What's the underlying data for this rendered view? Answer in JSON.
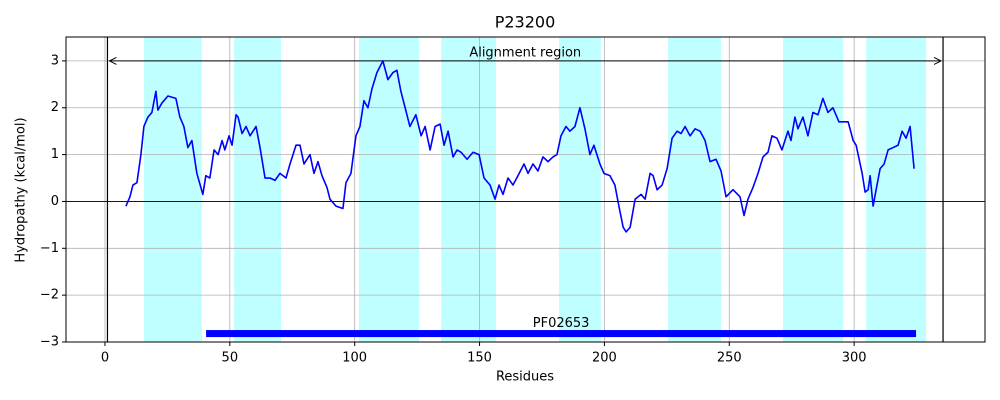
{
  "chart_data": {
    "type": "line",
    "title": "P23200",
    "xlabel": "Residues",
    "ylabel": "Hydropathy (kcal/mol)",
    "x": [
      8.4,
      10,
      11.2,
      12.8,
      14.4,
      15.6,
      17.2,
      18.8,
      20.4,
      21.2,
      22.8,
      25.2,
      28.4,
      30,
      31.6,
      33.2,
      34.8,
      36.8,
      39.2,
      40.4,
      42,
      43.7,
      45.3,
      46.9,
      48,
      49.7,
      50.9,
      52.5,
      53.3,
      54.9,
      56.5,
      58.1,
      60.5,
      62.1,
      64.1,
      66.1,
      68.1,
      70.1,
      72.5,
      74.1,
      76.5,
      78.1,
      79.7,
      82.1,
      83.7,
      85.3,
      86.9,
      88.9,
      90.1,
      92.5,
      95.3,
      96.5,
      98.5,
      100.5,
      102.1,
      103.7,
      105.3,
      106.9,
      108.9,
      111.3,
      113.3,
      115.3,
      116.9,
      118.5,
      120.2,
      122.1,
      124.5,
      126.6,
      128.2,
      130.2,
      132.2,
      134.2,
      135.8,
      137.4,
      139.4,
      141,
      142.6,
      145,
      147.4,
      149.8,
      151.8,
      154.2,
      156.2,
      157.8,
      159.4,
      161.4,
      163.4,
      165.4,
      167.8,
      169.4,
      171.4,
      173.4,
      175.4,
      177.4,
      179.4,
      181,
      182.6,
      184.6,
      186.2,
      188.2,
      190.2,
      192.2,
      194.2,
      195.8,
      198.2,
      199.8,
      202.2,
      204.2,
      205.8,
      207.5,
      208.7,
      210.3,
      212.3,
      214.7,
      216.3,
      218.3,
      219.5,
      221.1,
      223.1,
      225.1,
      227.1,
      229.1,
      230.7,
      232.3,
      234.3,
      236.3,
      238.3,
      240.3,
      242.3,
      244.7,
      246.7,
      248.7,
      251.5,
      254.3,
      255.9,
      257.5,
      259.5,
      261.5,
      263.5,
      265.5,
      267.1,
      269.1,
      271.1,
      273.5,
      274.7,
      276.3,
      277.5,
      279.5,
      281.5,
      283.5,
      285.5,
      287.5,
      289.5,
      291.5,
      293.9,
      297.6,
      299.6,
      300.8,
      303.2,
      304.4,
      305.6,
      306.4,
      307.6,
      308.8,
      310.4,
      312,
      313.6,
      315.6,
      317.6,
      319.2,
      320.8,
      322.4,
      324
    ],
    "values": [
      -0.1,
      0.1,
      0.35,
      0.4,
      1.0,
      1.6,
      1.8,
      1.9,
      2.35,
      1.95,
      2.1,
      2.25,
      2.2,
      1.8,
      1.6,
      1.15,
      1.3,
      0.6,
      0.15,
      0.55,
      0.5,
      1.1,
      1.0,
      1.3,
      1.1,
      1.4,
      1.2,
      1.85,
      1.8,
      1.45,
      1.6,
      1.4,
      1.6,
      1.15,
      0.5,
      0.5,
      0.45,
      0.6,
      0.5,
      0.8,
      1.2,
      1.2,
      0.8,
      1.0,
      0.6,
      0.85,
      0.55,
      0.3,
      0.05,
      -0.1,
      -0.15,
      0.4,
      0.6,
      1.4,
      1.6,
      2.15,
      2.0,
      2.4,
      2.75,
      3.0,
      2.6,
      2.75,
      2.8,
      2.35,
      2.0,
      1.6,
      1.85,
      1.4,
      1.6,
      1.1,
      1.6,
      1.65,
      1.2,
      1.5,
      0.95,
      1.1,
      1.05,
      0.9,
      1.05,
      1.0,
      0.5,
      0.35,
      0.05,
      0.35,
      0.15,
      0.5,
      0.35,
      0.55,
      0.8,
      0.6,
      0.8,
      0.65,
      0.95,
      0.85,
      0.95,
      1.0,
      1.4,
      1.6,
      1.5,
      1.6,
      2.0,
      1.55,
      1.0,
      1.2,
      0.8,
      0.6,
      0.55,
      0.35,
      -0.1,
      -0.55,
      -0.65,
      -0.55,
      0.05,
      0.15,
      0.05,
      0.6,
      0.55,
      0.25,
      0.35,
      0.7,
      1.35,
      1.5,
      1.45,
      1.6,
      1.4,
      1.55,
      1.5,
      1.3,
      0.85,
      0.9,
      0.65,
      0.1,
      0.25,
      0.1,
      -0.3,
      0.05,
      0.3,
      0.6,
      0.95,
      1.05,
      1.4,
      1.35,
      1.1,
      1.5,
      1.3,
      1.8,
      1.55,
      1.8,
      1.4,
      1.9,
      1.85,
      2.2,
      1.9,
      2.0,
      1.7,
      1.7,
      1.3,
      1.2,
      0.6,
      0.2,
      0.25,
      0.55,
      -0.1,
      0.25,
      0.7,
      0.8,
      1.1,
      1.15,
      1.2,
      1.5,
      1.35,
      1.6,
      0.7
    ],
    "color": "#0000ff",
    "xlim": [
      -15.6,
      352.4
    ],
    "ylim": [
      -3,
      3.51
    ],
    "xticks": [
      0,
      50,
      100,
      150,
      200,
      250,
      300
    ],
    "yticks": [
      {
        "value": -3,
        "label": "−3"
      },
      {
        "value": -2,
        "label": "−2"
      },
      {
        "value": -1,
        "label": "−1"
      },
      0,
      1,
      2,
      3
    ],
    "grid": true,
    "axhline": 0,
    "shaded_regions": [
      [
        15.6,
        38.8
      ],
      [
        51.7,
        70.5
      ],
      [
        101.7,
        125.8
      ],
      [
        134.6,
        156.6
      ],
      [
        181.8,
        198.6
      ],
      [
        225.5,
        246.7
      ],
      [
        271.5,
        295.6
      ],
      [
        304.8,
        328.8
      ]
    ],
    "shaded_color": "#c0ffff",
    "alignment_region": {
      "start": 1,
      "end": 335.6,
      "y": 3,
      "label": "Alignment region"
    },
    "domains": [
      {
        "name": "PF02653",
        "start": 40.5,
        "end": 324.8,
        "y": -2.82,
        "color": "#0000ff"
      }
    ]
  }
}
